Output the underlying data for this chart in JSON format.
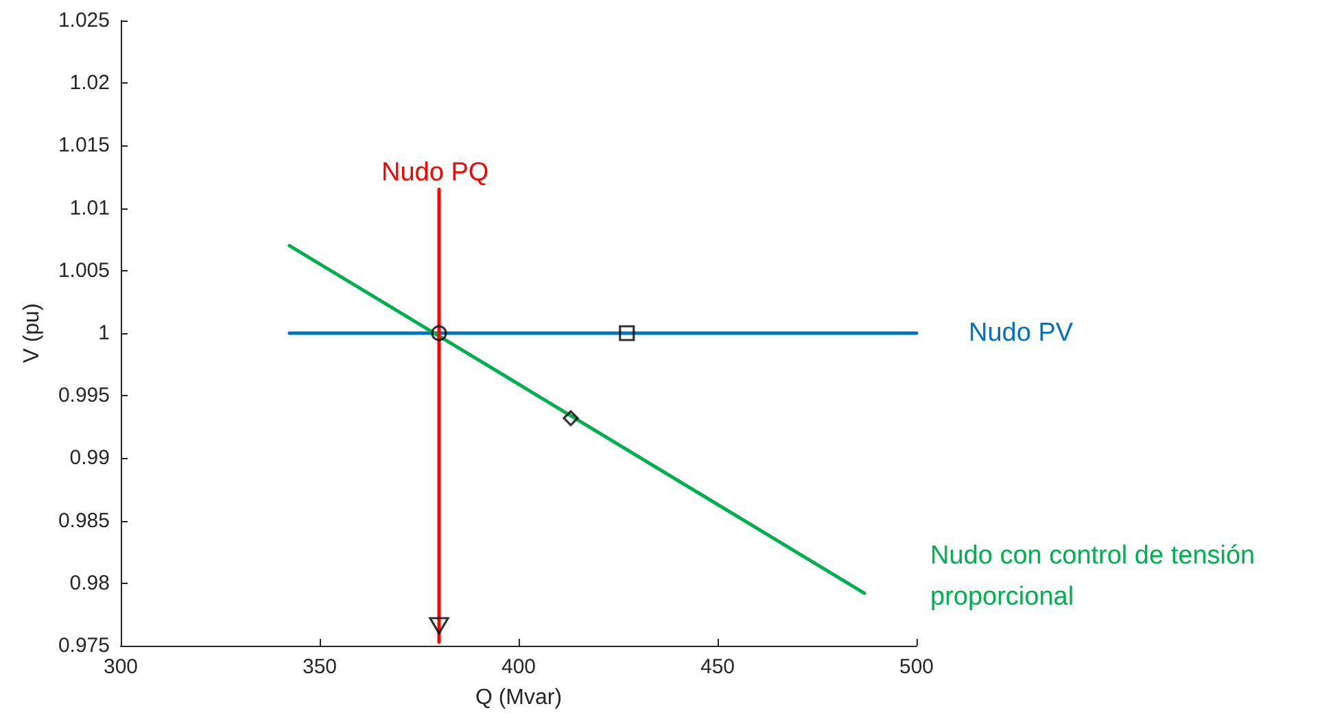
{
  "chart_data": {
    "type": "line",
    "xlabel": "Q (Mvar)",
    "ylabel": "V (pu)",
    "xlim": [
      300,
      500
    ],
    "xticks": [
      300,
      350,
      400,
      450,
      500
    ],
    "ylim": [
      0.975,
      1.025
    ],
    "yticks": [
      0.975,
      0.98,
      0.985,
      0.99,
      0.995,
      1,
      1.005,
      1.01,
      1.015,
      1.02,
      1.025
    ],
    "grid": false,
    "legend": false,
    "marker": "none",
    "line_style": "solid",
    "series": [
      {
        "name": "Nudo PV",
        "color": "#0072bd",
        "x": [
          342.4,
          500
        ],
        "values": [
          1,
          1
        ]
      },
      {
        "name": "Nudo con control de tensión proporcional",
        "color": "#00b050",
        "x": [
          342.4,
          486.9
        ],
        "values": [
          1.007,
          0.9792
        ]
      },
      {
        "name": "Nudo PQ",
        "color": "#ff0000",
        "x": [
          380,
          380
        ],
        "values": [
          0.9753,
          1.0115
        ]
      },
      {
        "type": "scatter",
        "marker": "circle",
        "color": "#000000",
        "x": [
          380
        ],
        "values": [
          1
        ]
      },
      {
        "type": "scatter",
        "marker": "square",
        "color": "#000000",
        "x": [
          427.2
        ],
        "values": [
          1
        ]
      },
      {
        "type": "scatter",
        "marker": "diamond",
        "color": "#000000",
        "x": [
          413.1
        ],
        "values": [
          0.9932
        ]
      },
      {
        "type": "scatter",
        "marker": "triangle",
        "color": "#000000",
        "x": [
          380
        ],
        "values": [
          0.9766
        ]
      }
    ]
  }
}
